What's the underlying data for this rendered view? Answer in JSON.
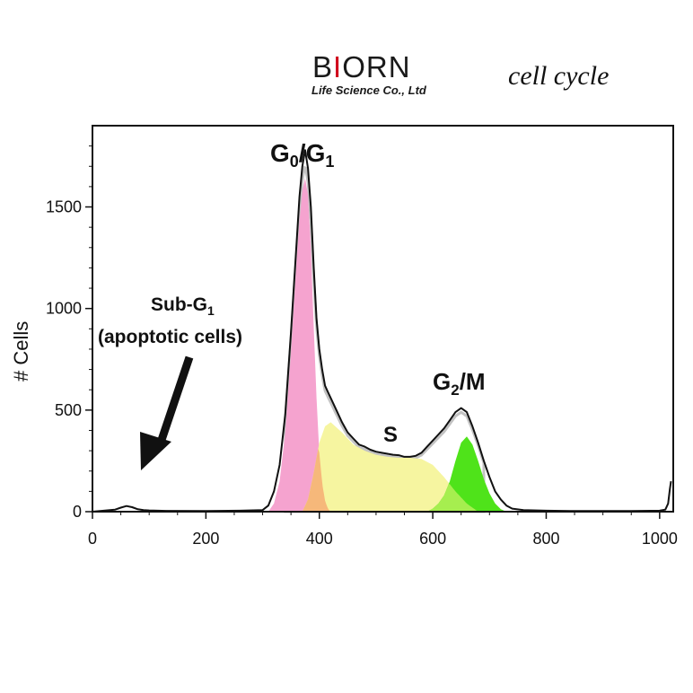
{
  "header": {
    "brand_prefix": "B",
    "brand_accent": "I",
    "brand_suffix": "ORN",
    "brand_subtitle": "Life Science Co., Ltd",
    "subject": "cell cycle"
  },
  "chart_data": {
    "type": "area",
    "title": "",
    "xlabel": "",
    "ylabel": "# Cells",
    "xlim": [
      0,
      1024
    ],
    "ylim": [
      0,
      1900
    ],
    "x_ticks": [
      0,
      200,
      400,
      600,
      800,
      1000
    ],
    "y_ticks": [
      0,
      500,
      1000,
      1500
    ],
    "grid": false,
    "annotations": {
      "g0g1": {
        "main": "G",
        "sub1": "0",
        "slash": "/G",
        "sub2": "1"
      },
      "s": {
        "text": "S"
      },
      "g2m": {
        "main": "G",
        "sub": "2",
        "rest": "/M"
      },
      "subg1": {
        "line1_main": "Sub-G",
        "line1_sub": "1",
        "line2": "(apoptotic cells)"
      }
    },
    "colors": {
      "g0g1": "#f5a3cf",
      "s_phase": "#f6f5a0",
      "overlap_g1_s": "#f6b87a",
      "g2m": "#4fe31a",
      "overlap_s_g2": "#a6ee4f",
      "measured_gray": "#c2c2c2",
      "histogram": "#111111"
    },
    "series": [
      {
        "name": "G0/G1",
        "x": [
          310,
          320,
          330,
          340,
          350,
          360,
          365,
          370,
          375,
          380,
          385,
          390,
          395,
          400,
          405,
          410,
          415,
          420
        ],
        "values": [
          0,
          40,
          150,
          390,
          780,
          1240,
          1430,
          1580,
          1640,
          1560,
          1300,
          920,
          560,
          290,
          140,
          55,
          15,
          0
        ]
      },
      {
        "name": "S",
        "x": [
          370,
          380,
          390,
          400,
          410,
          420,
          440,
          460,
          480,
          500,
          520,
          540,
          560,
          580,
          600,
          620,
          640,
          660,
          680
        ],
        "values": [
          0,
          60,
          190,
          340,
          420,
          440,
          390,
          330,
          300,
          280,
          270,
          265,
          265,
          260,
          230,
          170,
          100,
          40,
          0
        ]
      },
      {
        "name": "G2/M",
        "x": [
          590,
          600,
          610,
          620,
          630,
          640,
          650,
          660,
          670,
          680,
          690,
          700,
          710,
          720,
          730
        ],
        "values": [
          0,
          15,
          40,
          80,
          150,
          250,
          340,
          370,
          330,
          250,
          160,
          90,
          40,
          12,
          0
        ]
      },
      {
        "name": "measured",
        "x": [
          0,
          40,
          50,
          60,
          70,
          80,
          90,
          100,
          130,
          200,
          260,
          300,
          310,
          320,
          330,
          340,
          350,
          360,
          365,
          370,
          375,
          380,
          385,
          390,
          395,
          400,
          405,
          410,
          415,
          420,
          430,
          440,
          450,
          460,
          470,
          480,
          490,
          500,
          510,
          520,
          530,
          540,
          550,
          560,
          570,
          580,
          590,
          600,
          610,
          620,
          630,
          640,
          650,
          660,
          670,
          680,
          690,
          700,
          710,
          720,
          730,
          740,
          760,
          800,
          850,
          900,
          950,
          1000,
          1010,
          1015,
          1018,
          1020
        ],
        "values": [
          0,
          10,
          20,
          28,
          22,
          12,
          8,
          6,
          4,
          3,
          5,
          8,
          30,
          100,
          230,
          480,
          880,
          1330,
          1550,
          1700,
          1780,
          1690,
          1500,
          1210,
          950,
          800,
          700,
          620,
          590,
          560,
          500,
          440,
          390,
          360,
          330,
          320,
          305,
          295,
          290,
          285,
          280,
          278,
          270,
          270,
          275,
          290,
          320,
          350,
          380,
          410,
          450,
          490,
          510,
          490,
          420,
          340,
          250,
          170,
          100,
          60,
          30,
          15,
          8,
          5,
          3,
          3,
          3,
          5,
          10,
          40,
          110,
          150
        ]
      }
    ]
  }
}
